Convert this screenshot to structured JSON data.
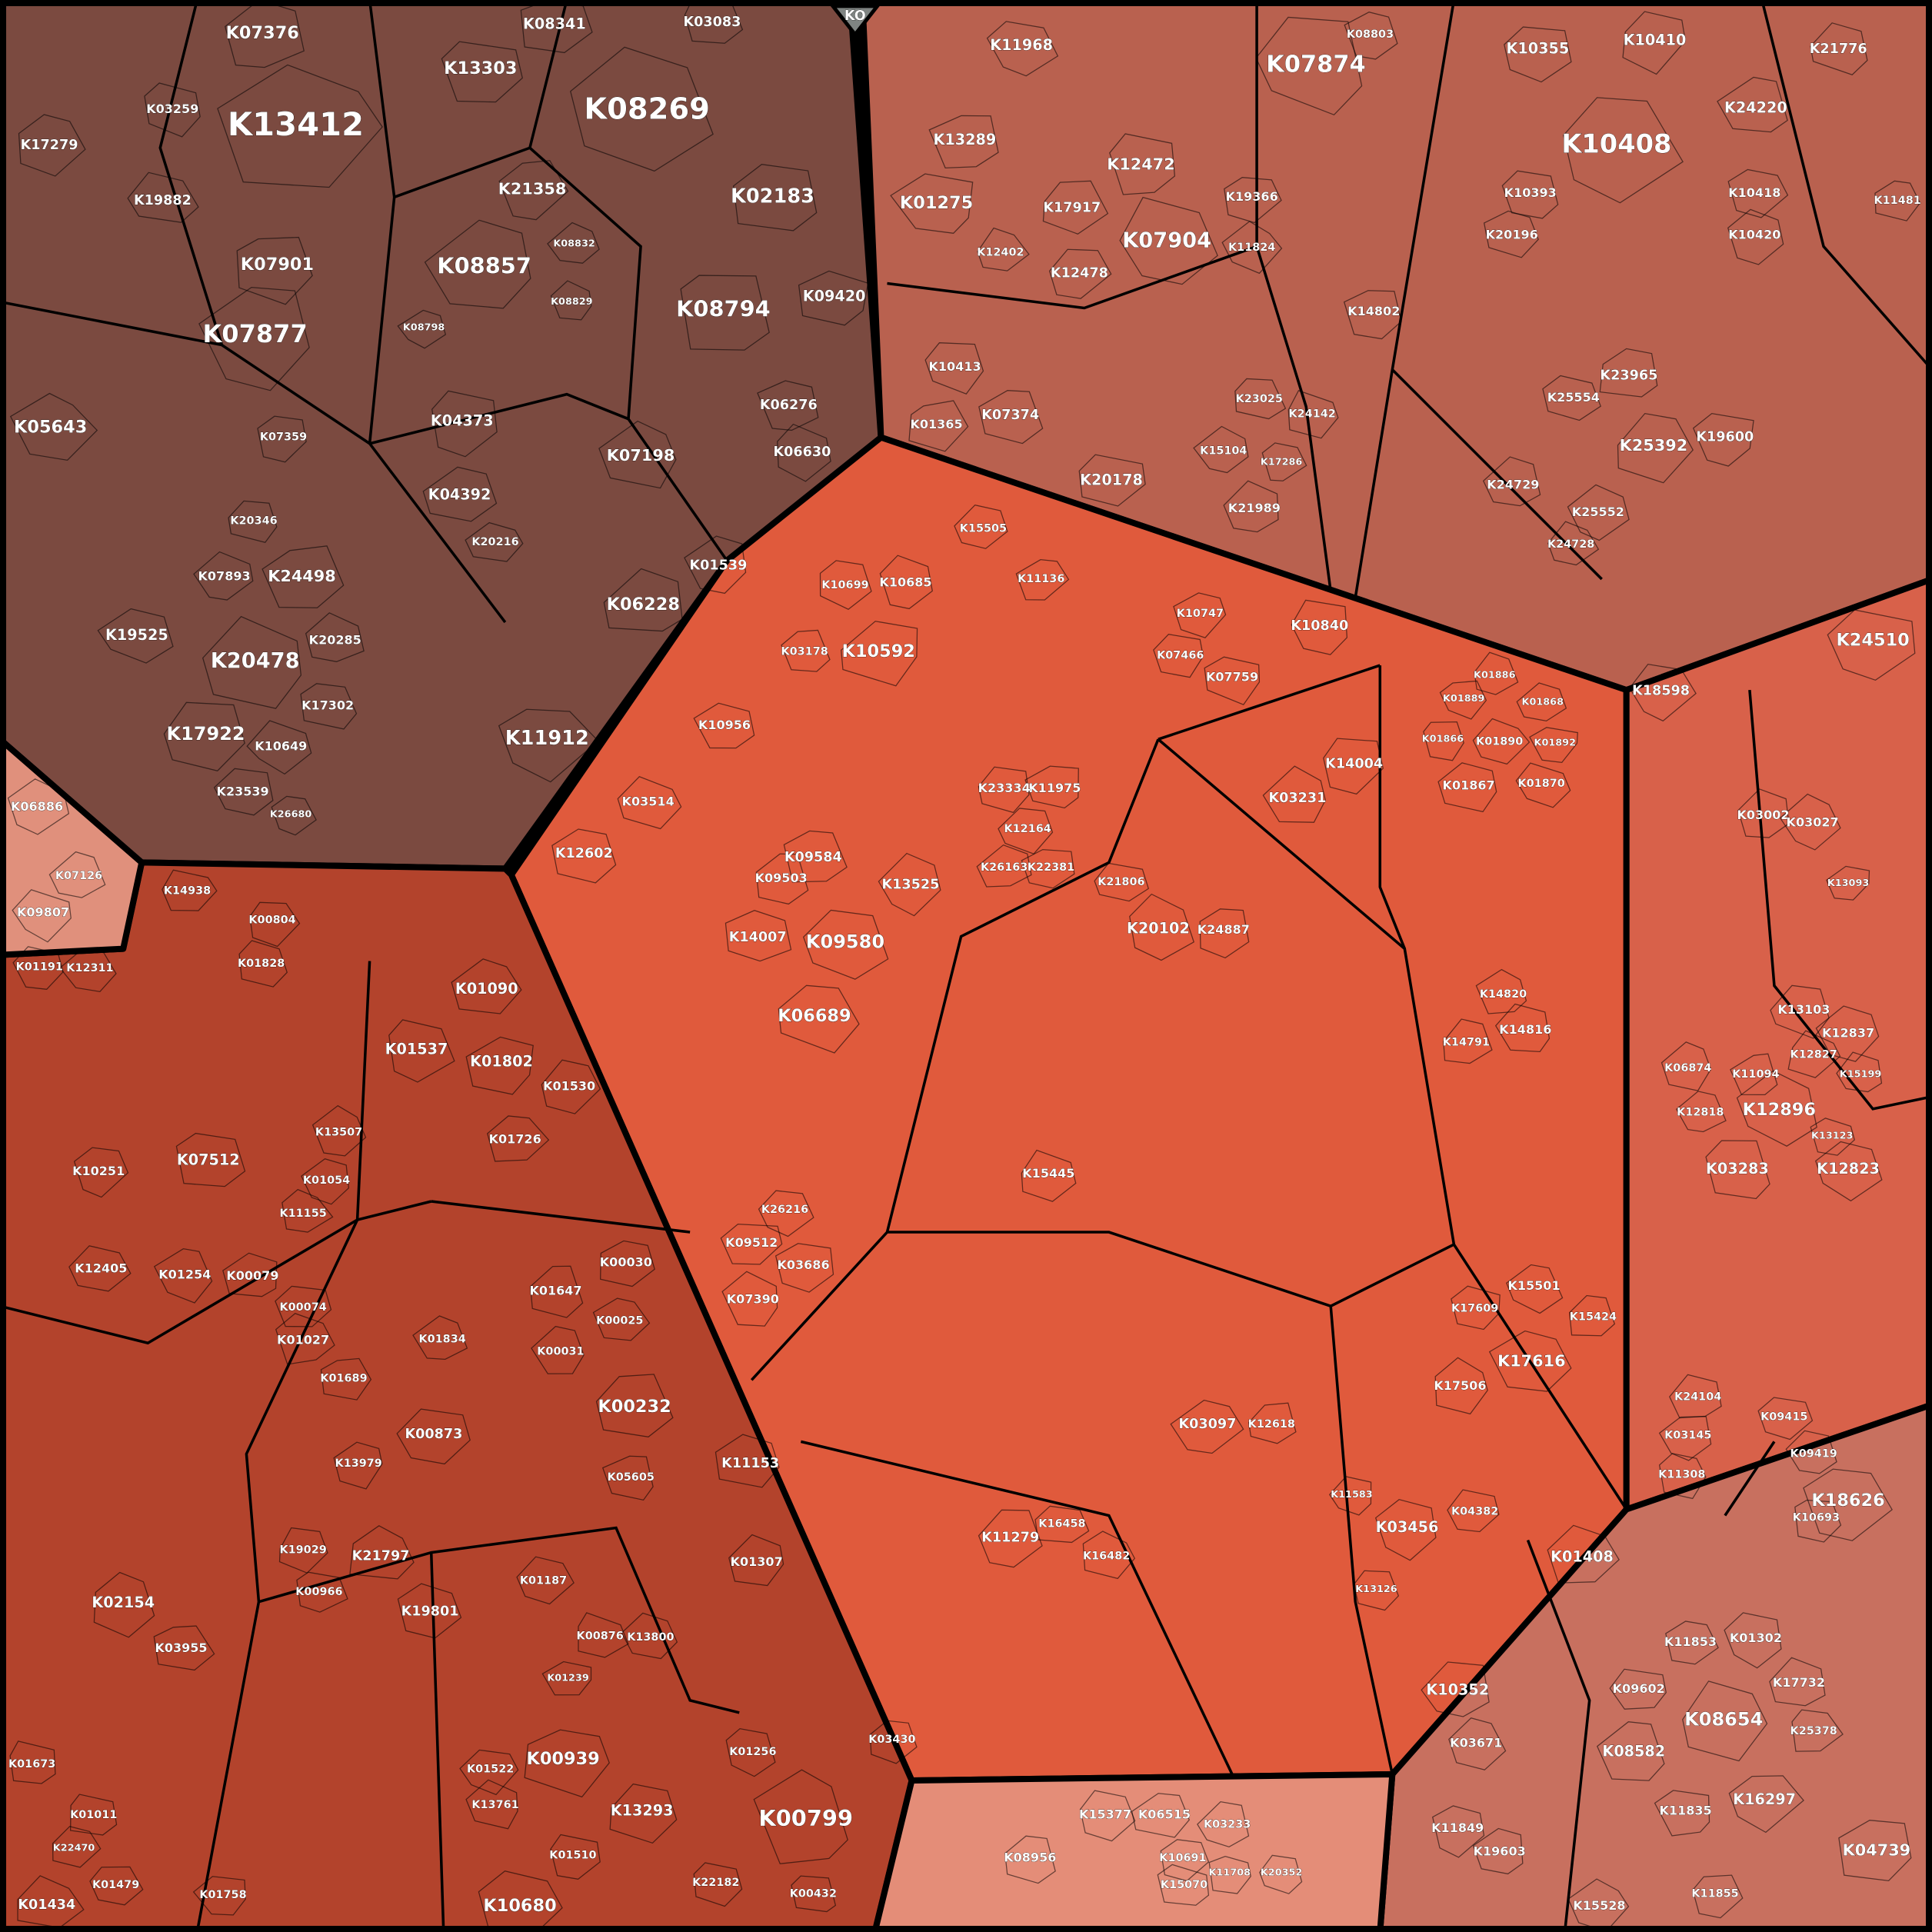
{
  "root_label": "KO",
  "colors": {
    "root": "#7f8482",
    "border": "#000000"
  },
  "regions": [
    {
      "id": "dark-brown",
      "color": "#7b4a40",
      "labels": [
        "K13412",
        "K08269",
        "K07877",
        "K08857",
        "K08794",
        "K07901",
        "K02183",
        "K13303",
        "K07376",
        "K20478",
        "K17922",
        "K11912",
        "K24498",
        "K05643",
        "K07359",
        "K04373",
        "K07198",
        "K06630",
        "K06228",
        "K01539",
        "K09420",
        "K21358",
        "K08341",
        "K03083",
        "K19882",
        "K17279",
        "K06276",
        "K04392",
        "K20346",
        "K07893",
        "K19525",
        "K20285",
        "K17302",
        "K23539",
        "K26680",
        "K10649",
        "K20216",
        "K08798",
        "K08832",
        "K08829",
        "K03259"
      ]
    },
    {
      "id": "tan",
      "color": "#b9614f",
      "labels": [
        "K07874",
        "K10408",
        "K07904",
        "K12472",
        "K01275",
        "K13289",
        "K11968",
        "K10355",
        "K10410",
        "K21776",
        "K24220",
        "K25392",
        "K23965",
        "K19600",
        "K07374",
        "K20178",
        "K12478",
        "K17917",
        "K14802",
        "K12402",
        "K11824",
        "K19366",
        "K10393",
        "K10418",
        "K20196",
        "K10420",
        "K25554",
        "K24729",
        "K25552",
        "K21989",
        "K23025",
        "K24142",
        "K15104",
        "K17286",
        "K10413",
        "K01365",
        "K08803",
        "K11481",
        "K24728",
        "K18598"
      ]
    },
    {
      "id": "central-orange",
      "color": "#e05a3c",
      "labels": [
        "K10592",
        "K09580",
        "K06689",
        "K10685",
        "K10699",
        "K03178",
        "K10956",
        "K03514",
        "K12602",
        "K09584",
        "K13525",
        "K14007",
        "K09503",
        "K03231",
        "K20102",
        "K24887",
        "K21806",
        "K14004",
        "K11975",
        "K23334",
        "K12164",
        "K22381",
        "K26163",
        "K15445",
        "K03097",
        "K17616",
        "K03456",
        "K17506",
        "K15501",
        "K15424",
        "K17609",
        "K14820",
        "K14816",
        "K14791",
        "K11279",
        "K16458",
        "K16482",
        "K12618",
        "K04382",
        "K11583",
        "K13126",
        "K10840",
        "K07759",
        "K07466",
        "K11136",
        "K10747",
        "K15505",
        "K03686",
        "K07390",
        "K09512",
        "K26216"
      ]
    },
    {
      "id": "right-orange",
      "color": "#d8614a",
      "labels": [
        "K12896",
        "K24510",
        "K03283",
        "K12823",
        "K01408",
        "K01890",
        "K01867",
        "K01870",
        "K01866",
        "K01892",
        "K01889",
        "K01868",
        "K03002",
        "K03027",
        "K12837",
        "K12827",
        "K11094",
        "K06874",
        "K13103",
        "K12818",
        "K15199",
        "K13123",
        "K24104",
        "K03145",
        "K11308",
        "K09419",
        "K09415",
        "K01886",
        "K13093"
      ]
    },
    {
      "id": "bottom-right",
      "color": "#c8705f",
      "labels": [
        "K18626",
        "K08654",
        "K16297",
        "K08582",
        "K04739",
        "K10352",
        "K03671",
        "K11849",
        "K11853",
        "K09602",
        "K11835",
        "K01302",
        "K17732",
        "K19603",
        "K15528",
        "K11855",
        "K25378",
        "K10693"
      ]
    },
    {
      "id": "bottom-left",
      "color": "#b3432c",
      "labels": [
        "K00232",
        "K00799",
        "K00939",
        "K01802",
        "K01537",
        "K01090",
        "K07512",
        "K02154",
        "K10680",
        "K13293",
        "K11153",
        "K00873",
        "K19801",
        "K21797",
        "K01647",
        "K00030",
        "K00025",
        "K00031",
        "K01254",
        "K00079",
        "K12405",
        "K03955",
        "K01307",
        "K01256",
        "K00432",
        "K22182",
        "K03430",
        "K01530",
        "K01726",
        "K05605",
        "K01027",
        "K01689",
        "K01834",
        "K00074",
        "K01434",
        "K01758",
        "K01479",
        "K01011",
        "K01673",
        "K13979",
        "K01187",
        "K00966",
        "K19029",
        "K11155",
        "K01054",
        "K13507",
        "K10251",
        "K12311",
        "K01191",
        "K14938",
        "K00804",
        "K01828",
        "K22470",
        "K01510",
        "K13761",
        "K01522",
        "K00876",
        "K13800",
        "K01239"
      ]
    },
    {
      "id": "bottom-pink",
      "color": "#e48d78",
      "labels": [
        "K08956",
        "K15377",
        "K06515",
        "K03233",
        "K10691",
        "K15070",
        "K20352",
        "K11708"
      ]
    },
    {
      "id": "left-pink",
      "color": "#e0907c",
      "labels": [
        "K06886",
        "K09807",
        "K07126"
      ]
    }
  ]
}
